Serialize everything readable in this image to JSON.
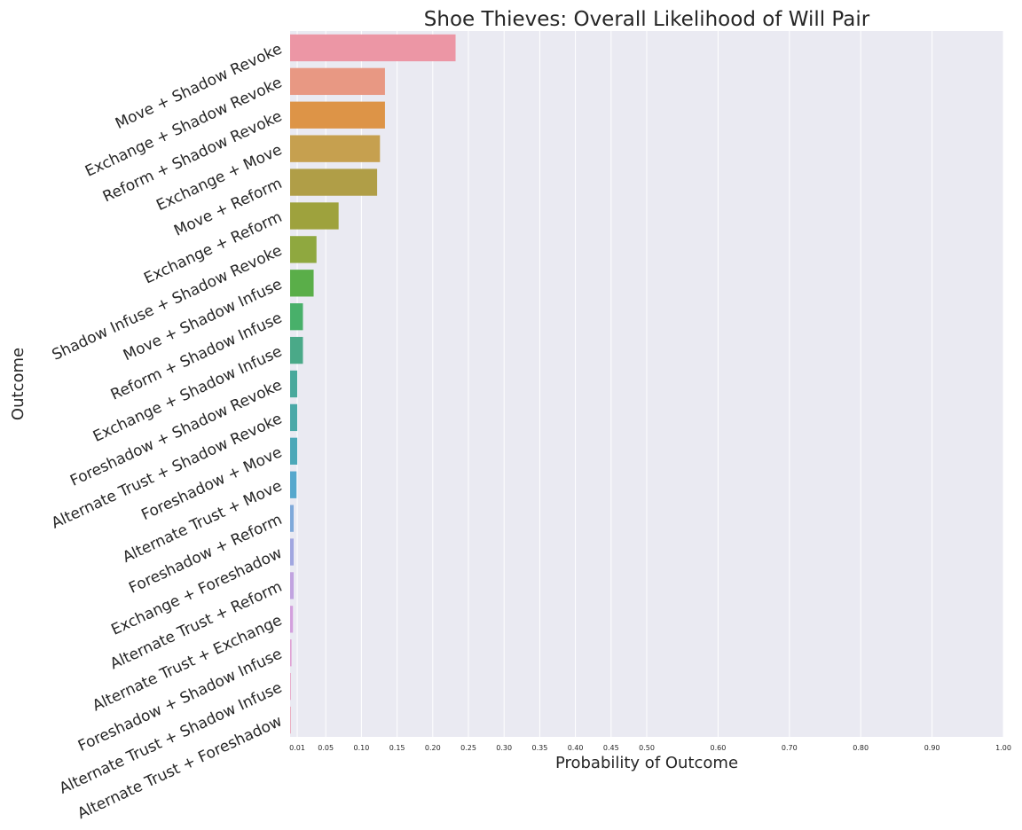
{
  "chart_data": {
    "type": "bar",
    "orientation": "horizontal",
    "title": "Shoe Thieves: Overall Likelihood of Will Pair",
    "xlabel": "Probability of Outcome",
    "ylabel": "Outcome",
    "xlim": [
      0,
      1.0
    ],
    "grid": true,
    "x_ticks": [
      "0.01",
      "0.05",
      "0.10",
      "0.15",
      "0.20",
      "0.25",
      "0.30",
      "0.35",
      "0.40",
      "0.45",
      "0.50",
      "0.60",
      "0.70",
      "0.80",
      "0.90",
      "1.00"
    ],
    "categories": [
      "Move + Shadow Revoke",
      "Exchange + Shadow Revoke",
      "Reform + Shadow Revoke",
      "Exchange + Move",
      "Move + Reform",
      "Exchange + Reform",
      "Shadow Infuse + Shadow Revoke",
      "Move + Shadow Infuse",
      "Reform + Shadow Infuse",
      "Exchange + Shadow Infuse",
      "Foreshadow + Shadow Revoke",
      "Alternate Trust + Shadow Revoke",
      "Foreshadow + Move",
      "Alternate Trust + Move",
      "Foreshadow + Reform",
      "Exchange + Foreshadow",
      "Alternate Trust + Reform",
      "Alternate Trust + Exchange",
      "Foreshadow + Shadow Infuse",
      "Alternate Trust + Shadow Infuse",
      "Alternate Trust + Foreshadow"
    ],
    "values": [
      0.232,
      0.133,
      0.133,
      0.126,
      0.122,
      0.068,
      0.037,
      0.033,
      0.018,
      0.018,
      0.01,
      0.01,
      0.01,
      0.009,
      0.005,
      0.005,
      0.005,
      0.004,
      0.002,
      0.001,
      0.001
    ],
    "colors": [
      "#ec96a5",
      "#e89883",
      "#dd9447",
      "#c6a04f",
      "#b09e47",
      "#9ea23d",
      "#8fa83f",
      "#5aae49",
      "#48b06a",
      "#4aa988",
      "#49a99c",
      "#4aa9a8",
      "#4ca8b8",
      "#56a8cd",
      "#7fa9da",
      "#a0a6e0",
      "#c1a3e0",
      "#d3a0dd",
      "#e09fd3",
      "#e7a0c3",
      "#eaa1b5"
    ],
    "style": {
      "plot_background": "#eaeaf2",
      "grid_color": "#ffffff"
    }
  }
}
